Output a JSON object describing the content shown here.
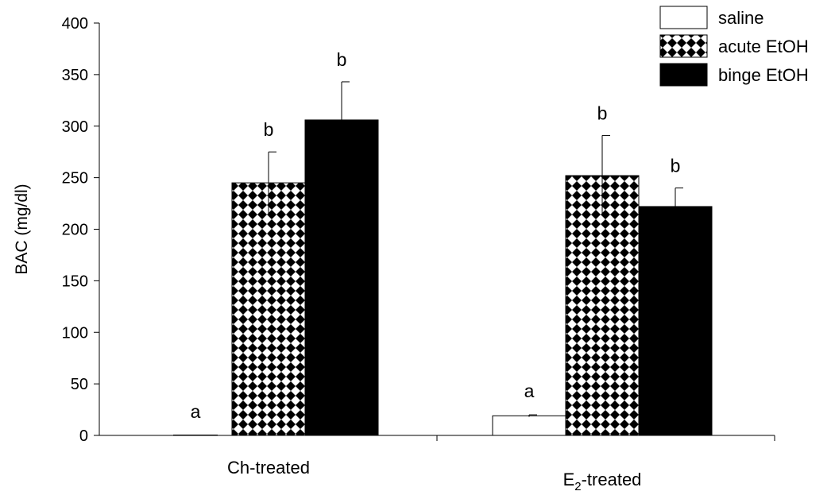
{
  "chart_data": {
    "type": "bar",
    "title": "",
    "xlabel": "",
    "ylabel": "BAC (mg/dl)",
    "ylim": [
      0,
      400
    ],
    "yticks": [
      "0",
      "50",
      "100",
      "150",
      "200",
      "250",
      "300",
      "350",
      "400"
    ],
    "grid": false,
    "legend_position": "top-right",
    "categories": [
      {
        "prefix": "Ch-treated",
        "subscript": "",
        "suffix": ""
      },
      {
        "prefix": "E",
        "subscript": "2",
        "suffix": "-treated"
      }
    ],
    "series": [
      {
        "name": "saline",
        "fill": "white",
        "values": [
          0,
          19
        ],
        "errors": [
          0,
          1
        ],
        "labels": [
          "a",
          "a"
        ]
      },
      {
        "name": "acute EtOH",
        "fill": "checker",
        "values": [
          245,
          252
        ],
        "errors": [
          30,
          39
        ],
        "labels": [
          "b",
          "b"
        ]
      },
      {
        "name": "binge EtOH",
        "fill": "black",
        "values": [
          306,
          222
        ],
        "errors": [
          37,
          18
        ],
        "labels": [
          "b",
          "b"
        ]
      }
    ],
    "colors": {
      "bar_stroke": "#000000",
      "black_fill": "#000000",
      "white_fill": "#ffffff"
    }
  }
}
